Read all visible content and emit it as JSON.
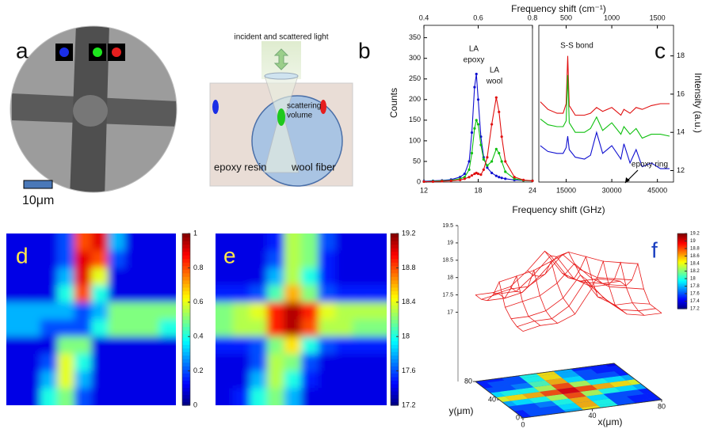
{
  "micrograph": {
    "label": "a",
    "scale_bar": "10μm"
  },
  "schematic": {
    "incident": "incident and scattered light",
    "volume": [
      "scattering",
      "volume"
    ],
    "epoxy": "epoxy resin",
    "wool": "wool fiber"
  },
  "chart_data": [
    {
      "type": "line",
      "label": "b",
      "x_label": "Frequency shift (GHz)",
      "x2_label": "Frequency shift (cm⁻¹)",
      "y_label": "Counts",
      "xlim": [
        12,
        24
      ],
      "xticks": [
        12,
        18,
        24
      ],
      "x2lim": [
        0.4,
        0.8
      ],
      "x2ticks": [
        0.4,
        0.6,
        0.8
      ],
      "ylim": [
        0,
        380
      ],
      "yticks": [
        0,
        50,
        100,
        150,
        200,
        250,
        300,
        350
      ],
      "annotations": [
        [
          "LA",
          "epoxy"
        ],
        [
          "LA",
          "wool"
        ]
      ],
      "series": [
        {
          "color": "#1010d0",
          "x": [
            12,
            13,
            14,
            15,
            16,
            16.5,
            17,
            17.3,
            17.6,
            17.8,
            18,
            18.3,
            18.6,
            19,
            19.5,
            20,
            20.3,
            20.6,
            21,
            22,
            23,
            24
          ],
          "values": [
            2,
            3,
            4,
            6,
            12,
            20,
            50,
            120,
            230,
            262,
            200,
            110,
            60,
            35,
            22,
            15,
            12,
            10,
            8,
            5,
            4,
            3
          ]
        },
        {
          "color": "#10c010",
          "x": [
            12,
            13,
            14,
            15,
            16,
            16.5,
            17,
            17.3,
            17.6,
            17.8,
            18,
            18.3,
            18.6,
            19,
            19.5,
            20,
            20.3,
            20.6,
            21,
            22,
            23,
            24
          ],
          "values": [
            1,
            2,
            3,
            4,
            8,
            12,
            30,
            70,
            130,
            150,
            140,
            90,
            55,
            40,
            50,
            80,
            70,
            50,
            25,
            8,
            4,
            3
          ]
        },
        {
          "color": "#e01010",
          "x": [
            12,
            13,
            14,
            15,
            16,
            16.5,
            17,
            17.3,
            17.6,
            17.8,
            18,
            18.3,
            18.6,
            19,
            19.5,
            20,
            20.3,
            20.6,
            21,
            22,
            23,
            24
          ],
          "values": [
            1,
            1,
            2,
            3,
            5,
            8,
            12,
            16,
            20,
            22,
            20,
            18,
            30,
            60,
            140,
            205,
            170,
            110,
            50,
            12,
            5,
            3
          ]
        }
      ]
    },
    {
      "type": "line",
      "label": "c",
      "y2_label": "Intensity (a.u.)",
      "xlim": [
        6000,
        50300
      ],
      "xticks": [
        15000,
        30000,
        45000
      ],
      "x2lim": [
        200,
        1677
      ],
      "x2ticks": [
        500,
        1000,
        1500
      ],
      "y2lim": [
        11.4,
        19.6
      ],
      "y2ticks": [
        12,
        14,
        16,
        18
      ],
      "annotations": [
        "S-S bond",
        "epoxy ring"
      ],
      "series": [
        {
          "color": "#e01010",
          "axis": "y2",
          "x": [
            6500,
            9000,
            12000,
            14000,
            15000,
            15500,
            16000,
            18000,
            21000,
            23000,
            25000,
            27000,
            30000,
            33000,
            34000,
            36000,
            38000,
            40000,
            43000,
            46000,
            49000
          ],
          "values": [
            15.6,
            15.2,
            15.0,
            15.0,
            15.5,
            18.0,
            15.4,
            14.9,
            14.9,
            15.0,
            15.3,
            15.1,
            15.3,
            14.9,
            15.2,
            15.0,
            15.3,
            15.2,
            15.4,
            15.5,
            15.5
          ]
        },
        {
          "color": "#10c010",
          "axis": "y2",
          "x": [
            6500,
            9000,
            12000,
            14000,
            15000,
            15500,
            16000,
            18000,
            21000,
            23000,
            25000,
            27000,
            30000,
            33000,
            34000,
            36000,
            38000,
            40000,
            43000,
            46000,
            49000
          ],
          "values": [
            14.7,
            14.4,
            14.3,
            14.3,
            14.6,
            17.0,
            14.5,
            14.0,
            14.0,
            14.2,
            14.8,
            14.1,
            14.5,
            13.9,
            14.3,
            13.9,
            14.2,
            13.7,
            13.9,
            13.9,
            13.8
          ]
        },
        {
          "color": "#1010d0",
          "axis": "y2",
          "x": [
            6500,
            9000,
            12000,
            14000,
            15000,
            15500,
            16000,
            18000,
            21000,
            23000,
            25000,
            27000,
            30000,
            33000,
            34000,
            36000,
            38000,
            40000,
            43000,
            46000,
            49000
          ],
          "values": [
            13.3,
            13.0,
            12.9,
            12.9,
            13.2,
            13.8,
            13.1,
            12.7,
            12.6,
            12.8,
            14.0,
            12.9,
            13.3,
            12.6,
            13.4,
            12.4,
            13.1,
            12.2,
            12.4,
            12.1,
            12.1
          ]
        }
      ]
    },
    {
      "type": "heatmap",
      "label": "d",
      "zlim": [
        0,
        1
      ],
      "cticks": [
        0,
        0.2,
        0.4,
        0.6,
        0.8,
        1
      ],
      "z": [
        [
          0.1,
          0.1,
          0.1,
          0.2,
          0.8,
          0.9,
          0.3,
          0.1,
          0.1,
          0.1
        ],
        [
          0.1,
          0.1,
          0.1,
          0.2,
          0.9,
          0.8,
          0.2,
          0.1,
          0.1,
          0.1
        ],
        [
          0.1,
          0.1,
          0.1,
          0.3,
          0.9,
          0.6,
          0.1,
          0.1,
          0.1,
          0.1
        ],
        [
          0.1,
          0.1,
          0.1,
          0.4,
          0.8,
          0.4,
          0.1,
          0.1,
          0.1,
          0.1
        ],
        [
          0.3,
          0.3,
          0.3,
          0.3,
          0.2,
          0.3,
          0.5,
          0.5,
          0.5,
          0.5
        ],
        [
          0.3,
          0.3,
          0.2,
          0.2,
          0.2,
          0.4,
          0.5,
          0.5,
          0.5,
          0.4
        ],
        [
          0.1,
          0.1,
          0.1,
          0.5,
          0.5,
          0.1,
          0.1,
          0.1,
          0.1,
          0.1
        ],
        [
          0.1,
          0.1,
          0.2,
          0.6,
          0.4,
          0.1,
          0.1,
          0.1,
          0.1,
          0.1
        ],
        [
          0.1,
          0.1,
          0.3,
          0.6,
          0.3,
          0.1,
          0.1,
          0.1,
          0.1,
          0.1
        ],
        [
          0.1,
          0.1,
          0.4,
          0.5,
          0.2,
          0.1,
          0.1,
          0.1,
          0.1,
          0.1
        ]
      ]
    },
    {
      "type": "heatmap",
      "label": "e",
      "zlim": [
        17.2,
        19.2
      ],
      "cticks": [
        17.2,
        17.6,
        18,
        18.4,
        18.8,
        19.2
      ],
      "z": [
        [
          17.4,
          17.4,
          17.4,
          17.5,
          18.3,
          18.2,
          17.6,
          17.4,
          17.4,
          17.4
        ],
        [
          17.4,
          17.4,
          17.4,
          17.6,
          18.3,
          18.2,
          17.5,
          17.4,
          17.4,
          17.4
        ],
        [
          17.4,
          17.4,
          17.4,
          17.8,
          18.3,
          18.0,
          17.5,
          17.4,
          17.4,
          17.4
        ],
        [
          17.5,
          17.5,
          17.6,
          18.1,
          18.6,
          18.2,
          17.6,
          17.5,
          17.5,
          17.5
        ],
        [
          18.2,
          18.3,
          18.4,
          18.9,
          19.1,
          18.9,
          18.4,
          18.3,
          18.3,
          18.3
        ],
        [
          18.2,
          18.3,
          18.3,
          18.9,
          19.1,
          18.8,
          18.3,
          18.3,
          18.2,
          18.2
        ],
        [
          17.5,
          17.5,
          17.6,
          18.2,
          18.5,
          18.0,
          17.6,
          17.5,
          17.5,
          17.5
        ],
        [
          17.4,
          17.4,
          17.6,
          18.3,
          18.2,
          17.6,
          17.4,
          17.4,
          17.4,
          17.4
        ],
        [
          17.4,
          17.4,
          17.8,
          18.3,
          18.0,
          17.5,
          17.4,
          17.4,
          17.4,
          17.4
        ],
        [
          17.4,
          17.5,
          18.0,
          18.2,
          17.8,
          17.4,
          17.4,
          17.4,
          17.4,
          17.4
        ]
      ]
    },
    {
      "type": "surface3d",
      "label": "f",
      "x_label": "x(μm)",
      "y_label": "y(μm)",
      "xlim": [
        0,
        80
      ],
      "xticks": [
        0,
        40,
        80
      ],
      "ylim": [
        0,
        80
      ],
      "yticks": [
        0,
        40,
        80
      ],
      "zlim": [
        15,
        19.5
      ],
      "zticks": [
        17,
        17.5,
        18,
        18.5,
        19,
        19.5
      ],
      "clim": [
        17.2,
        19.2
      ],
      "cticks": [
        17.2,
        17.4,
        17.6,
        17.8,
        18,
        18.2,
        18.4,
        18.6,
        18.8,
        19,
        19.2
      ],
      "x": [
        0,
        10,
        20,
        30,
        40,
        50,
        60,
        70,
        80
      ],
      "y": [
        0,
        10,
        20,
        30,
        40,
        50,
        60,
        70,
        80
      ],
      "z": [
        [
          17.5,
          17.6,
          17.6,
          17.8,
          18.5,
          18.0,
          17.6,
          17.5,
          17.5
        ],
        [
          17.5,
          17.6,
          17.6,
          17.9,
          18.6,
          18.0,
          17.6,
          17.5,
          17.5
        ],
        [
          17.6,
          17.6,
          17.7,
          18.0,
          18.6,
          17.9,
          17.6,
          17.6,
          17.5
        ],
        [
          17.8,
          17.9,
          18.0,
          18.3,
          18.8,
          18.3,
          18.0,
          17.9,
          17.8
        ],
        [
          18.4,
          18.5,
          18.6,
          18.8,
          19.0,
          18.8,
          18.6,
          18.5,
          18.4
        ],
        [
          17.9,
          18.0,
          18.0,
          18.3,
          18.8,
          18.3,
          18.0,
          17.9,
          17.8
        ],
        [
          17.6,
          17.6,
          17.7,
          18.1,
          18.6,
          17.9,
          17.6,
          17.6,
          17.5
        ],
        [
          17.5,
          17.6,
          17.6,
          18.0,
          18.5,
          17.8,
          17.6,
          17.5,
          17.5
        ],
        [
          17.5,
          17.5,
          17.6,
          18.0,
          18.5,
          17.8,
          17.5,
          17.5,
          17.4
        ]
      ]
    }
  ]
}
